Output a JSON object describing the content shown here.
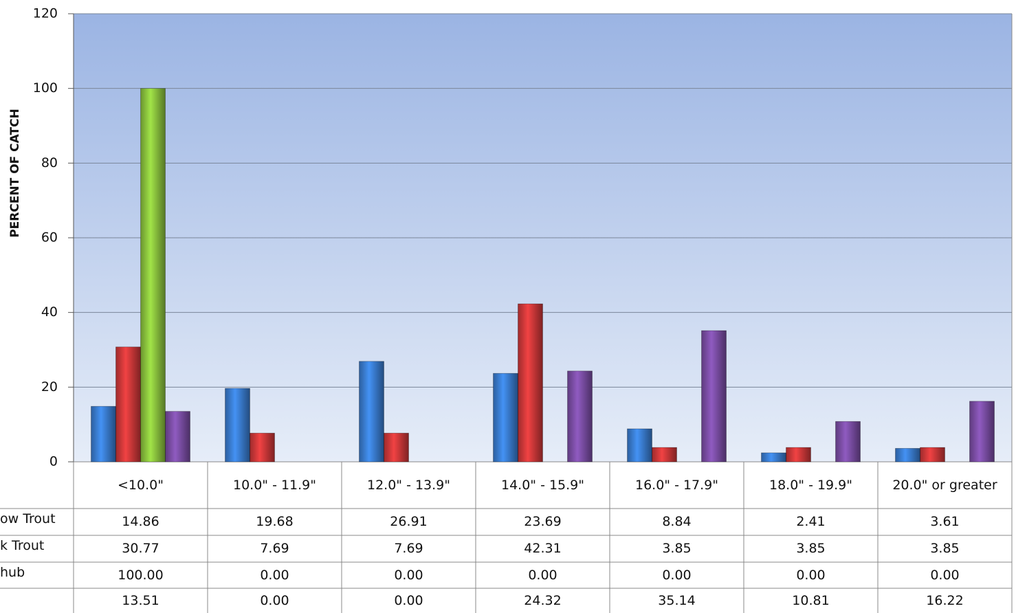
{
  "chart_data": {
    "type": "bar",
    "ylabel": "PERCENT OF CATCH",
    "categories": [
      "<10.0\"",
      "10.0\" - 11.9\"",
      "12.0\" - 13.9\"",
      "14.0\" - 15.9\"",
      "16.0\" - 17.9\"",
      "18.0\" - 19.9\"",
      "20.0\" or greater"
    ],
    "series": [
      {
        "name": "ow Trout",
        "color": "#3b7fd4",
        "values": [
          14.86,
          19.68,
          26.91,
          23.69,
          8.84,
          2.41,
          3.61
        ],
        "value_labels": [
          "14.86",
          "19.68",
          "26.91",
          "23.69",
          "8.84",
          "2.41",
          "3.61"
        ]
      },
      {
        "name": "k Trout",
        "color": "#d2393a",
        "values": [
          30.77,
          7.69,
          7.69,
          42.31,
          3.85,
          3.85,
          3.85
        ],
        "value_labels": [
          "30.77",
          "7.69",
          "7.69",
          "42.31",
          "3.85",
          "3.85",
          "3.85"
        ]
      },
      {
        "name": "hub",
        "color": "#8dc63f",
        "values": [
          100,
          0,
          0,
          0,
          0,
          0,
          0
        ],
        "value_labels": [
          "100.00",
          "0.00",
          "0.00",
          "0.00",
          "0.00",
          "0.00",
          "0.00"
        ]
      },
      {
        "color": "#7d4fa8",
        "values": [
          13.51,
          0,
          0,
          24.32,
          35.14,
          10.81,
          16.22
        ],
        "value_labels": [
          "13.51",
          "0.00",
          "0.00",
          "24.32",
          "35.14",
          "10.81",
          "16.22"
        ]
      }
    ],
    "ylim": [
      0,
      120
    ],
    "yticks": [
      0,
      20,
      40,
      60,
      80,
      100,
      120
    ],
    "grid": true
  }
}
